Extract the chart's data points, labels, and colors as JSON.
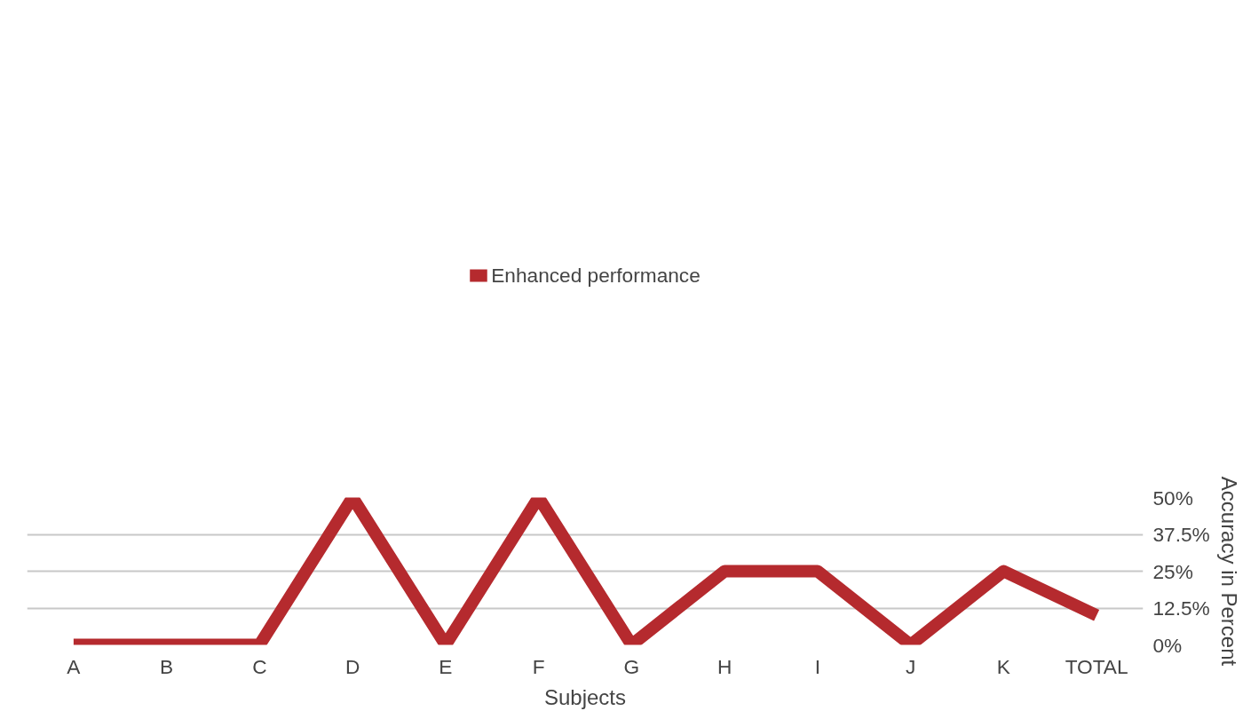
{
  "chart_data": {
    "type": "line",
    "xlabel": "Subjects",
    "ylabel": "Accuracy in Percent",
    "categories": [
      "A",
      "B",
      "C",
      "D",
      "E",
      "F",
      "G",
      "H",
      "I",
      "J",
      "K",
      "TOTAL"
    ],
    "series": [
      {
        "name": "Enhanced performance",
        "color": "#b52a2e",
        "values": [
          0,
          0,
          0,
          50,
          0,
          50,
          0,
          25,
          25,
          0,
          25,
          10
        ]
      }
    ],
    "ylim": [
      0,
      50
    ],
    "yticks": [
      {
        "value": 0,
        "label": "0%"
      },
      {
        "value": 12.5,
        "label": "12.5%"
      },
      {
        "value": 25,
        "label": "25%"
      },
      {
        "value": 37.5,
        "label": "37.5%"
      },
      {
        "value": 50,
        "label": "50%"
      }
    ],
    "grid": "y",
    "legend": "top",
    "marker": "none",
    "line_style": "solid"
  }
}
